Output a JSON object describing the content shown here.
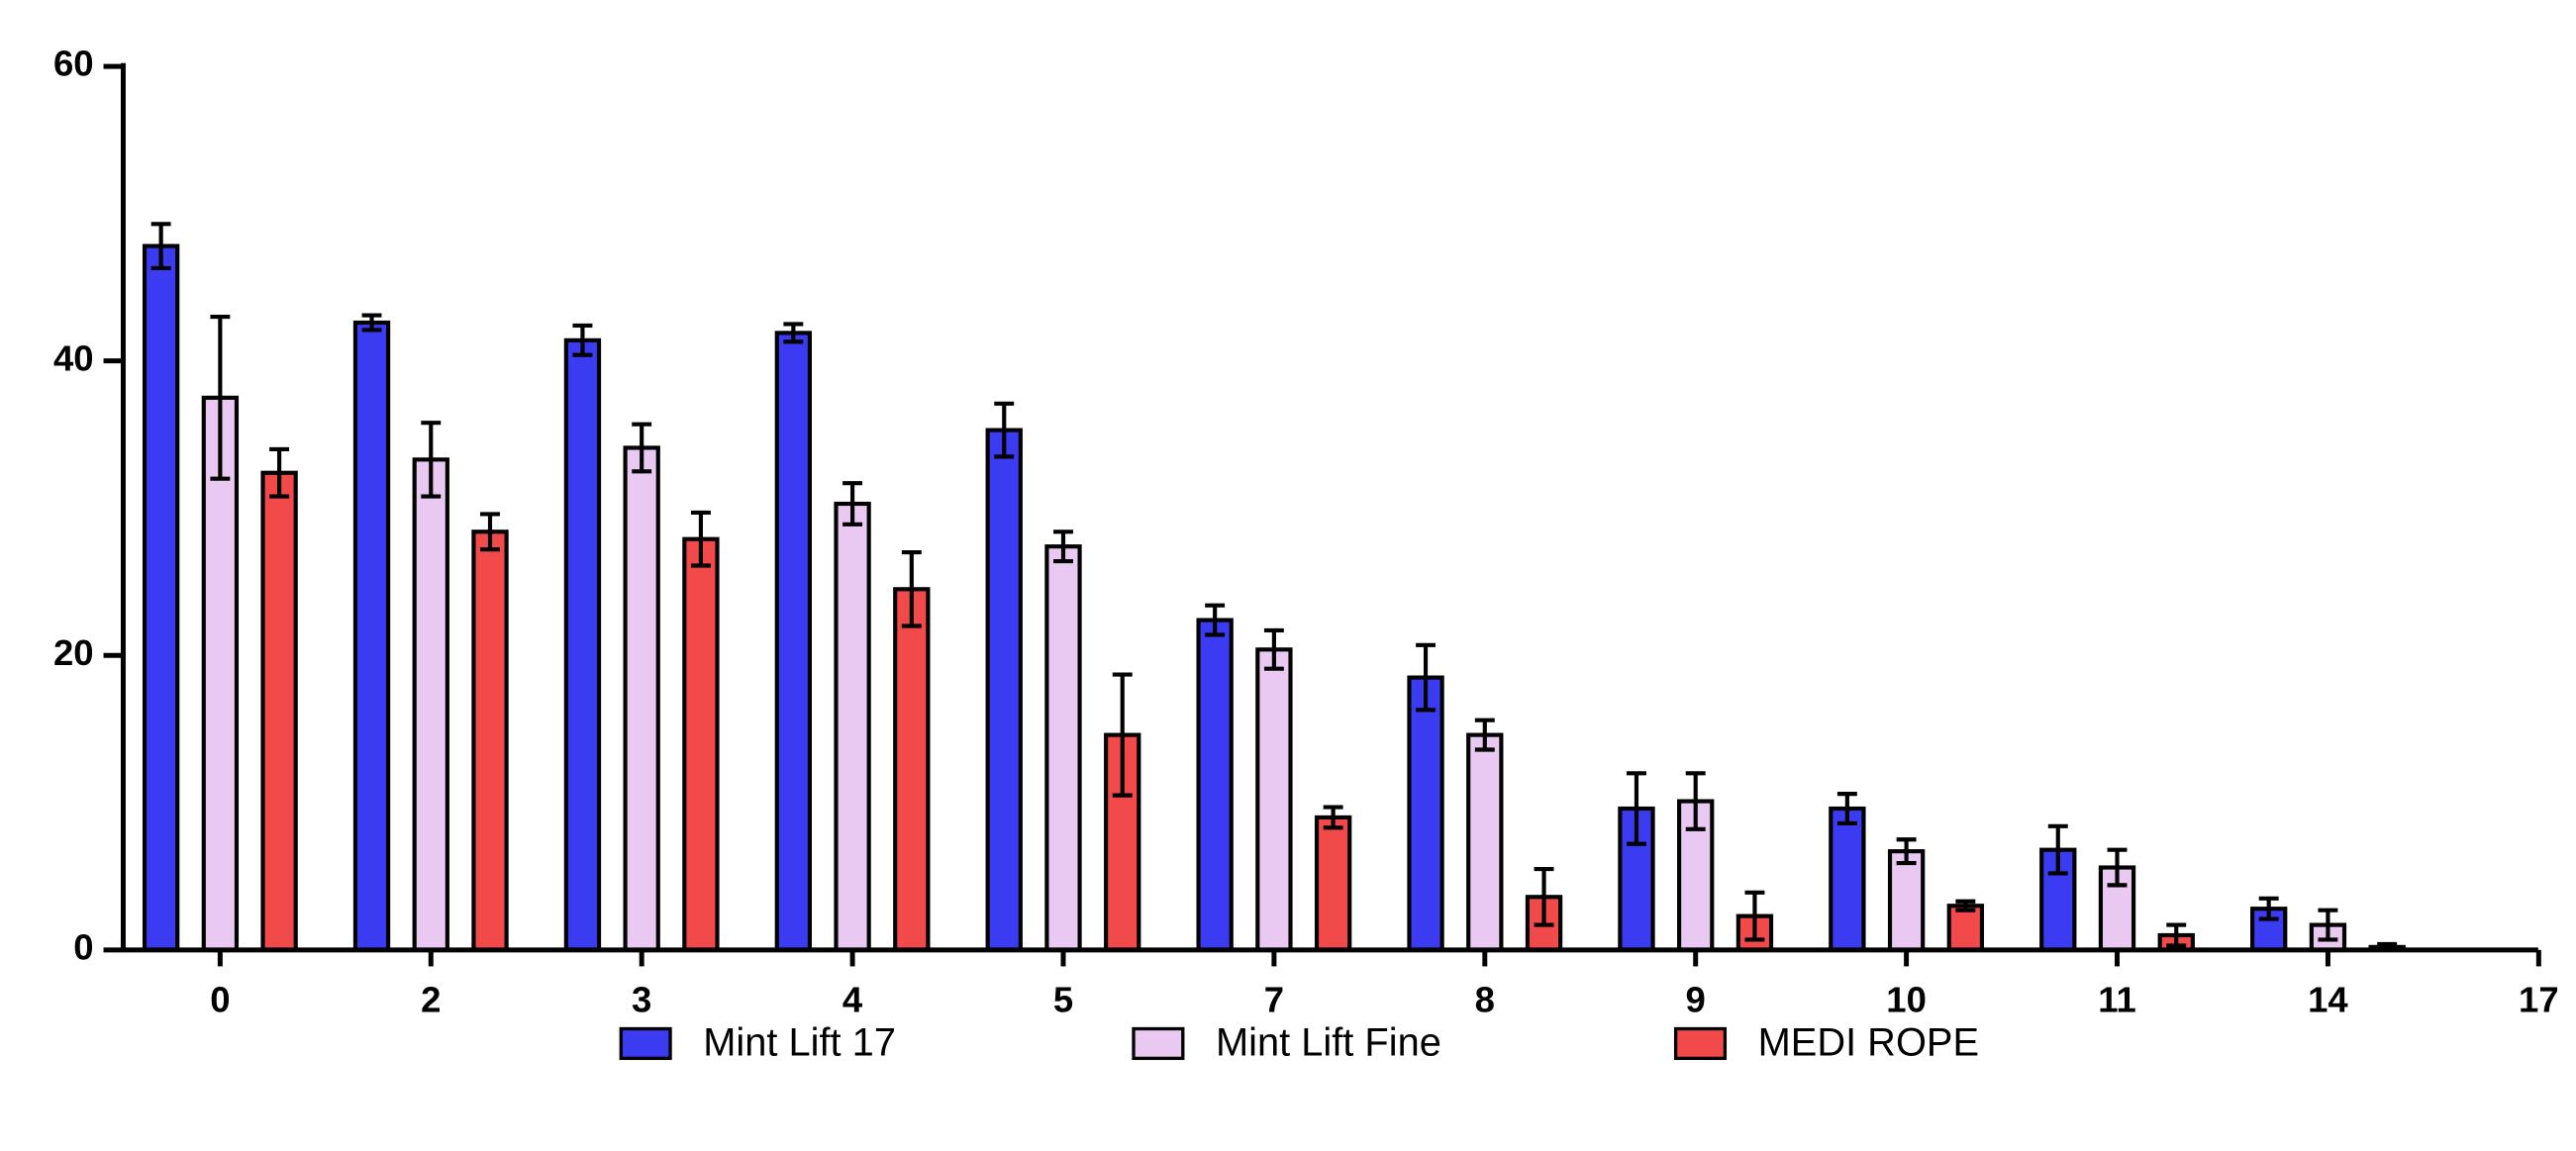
{
  "chart_data": {
    "type": "bar",
    "categories": [
      "0",
      "2",
      "3",
      "4",
      "5",
      "7",
      "8",
      "9",
      "10",
      "11",
      "14",
      "17"
    ],
    "series": [
      {
        "name": "Mint Lift 17",
        "color": "#3b3bf2",
        "values": [
          47.8,
          42.6,
          41.4,
          41.9,
          35.3,
          22.4,
          18.5,
          9.6,
          9.6,
          6.8,
          2.8,
          null
        ],
        "errors": [
          1.5,
          0.5,
          1.0,
          0.6,
          1.8,
          1.0,
          2.2,
          2.4,
          1.0,
          1.6,
          0.7,
          null
        ]
      },
      {
        "name": "Mint Lift Fine",
        "color": "#e9c9f2",
        "values": [
          37.5,
          33.3,
          34.1,
          30.3,
          27.4,
          20.4,
          14.6,
          10.1,
          6.7,
          5.6,
          1.7,
          null
        ],
        "errors": [
          5.5,
          2.5,
          1.6,
          1.4,
          1.0,
          1.3,
          1.0,
          1.9,
          0.8,
          1.2,
          1.0,
          null
        ]
      },
      {
        "name": "MEDI ROPE",
        "color": "#f24a4a",
        "values": [
          32.4,
          28.4,
          27.9,
          24.5,
          14.6,
          9.0,
          3.6,
          2.3,
          3.0,
          1.0,
          0.2,
          null
        ],
        "errors": [
          1.6,
          1.2,
          1.8,
          2.5,
          4.1,
          0.7,
          1.9,
          1.6,
          0.3,
          0.7,
          0.2,
          null
        ]
      }
    ],
    "ylim": [
      0,
      60
    ],
    "yticks": [
      0,
      20,
      40,
      60
    ],
    "grid": false,
    "legend": "bottom"
  }
}
